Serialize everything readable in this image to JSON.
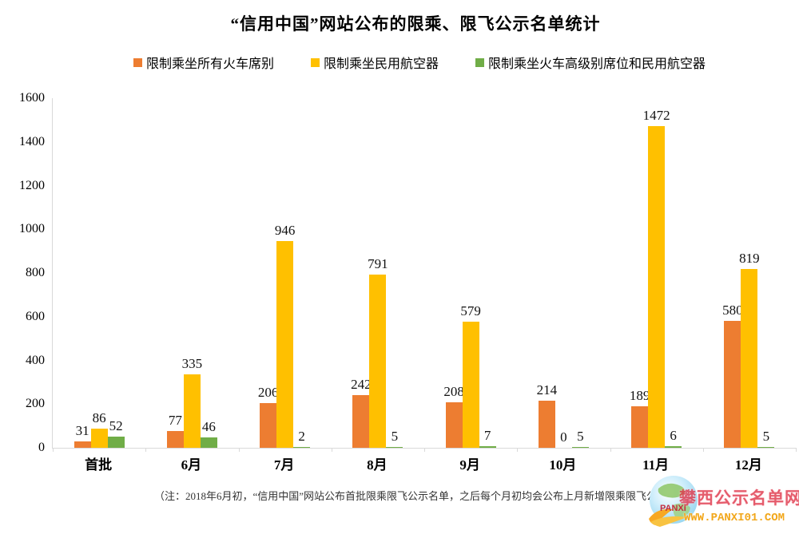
{
  "chart_data": {
    "type": "bar",
    "title": "“信用中国”网站公布的限乘、限飞公示名单统计",
    "categories": [
      "首批",
      "6月",
      "7月",
      "8月",
      "9月",
      "10月",
      "11月",
      "12月"
    ],
    "series": [
      {
        "name": "限制乘坐所有火车席别",
        "color": "#ED7D31",
        "values": [
          31,
          77,
          206,
          242,
          208,
          214,
          189,
          580
        ]
      },
      {
        "name": "限制乘坐民用航空器",
        "color": "#FFC000",
        "values": [
          86,
          335,
          946,
          791,
          579,
          0,
          1472,
          819
        ]
      },
      {
        "name": "限制乘坐火车高级别席位和民用航空器",
        "color": "#70AD47",
        "values": [
          52,
          46,
          2,
          5,
          7,
          5,
          6,
          5
        ]
      }
    ],
    "xlabel": "",
    "ylabel": "",
    "ylim": [
      0,
      1600
    ],
    "ytick_step": 200,
    "grid": false,
    "legend_position": "top",
    "data_labels": true
  },
  "footer": {
    "note": "（注：2018年6月初，“信用中国”网站公布首批限乘限飞公示名单，之后每个月初均会公布上月新增限乘限飞公示名单）"
  },
  "watermark": {
    "logo_text": "PANXI",
    "site_text": "攀西公示名单网",
    "url": "WWW.PANXI01.COM"
  }
}
